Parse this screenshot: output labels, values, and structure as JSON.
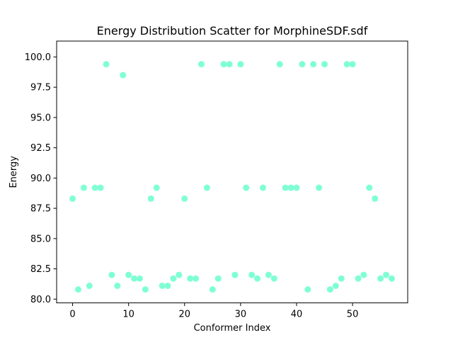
{
  "chart_data": {
    "type": "scatter",
    "title": "Energy Distribution Scatter for MorphineSDF.sdf",
    "xlabel": "Conformer Index",
    "ylabel": "Energy",
    "xlim": [
      -2.85,
      59.85
    ],
    "ylim": [
      79.69,
      101.31
    ],
    "xticks": [
      0,
      10,
      20,
      30,
      40,
      50
    ],
    "yticks": [
      80.0,
      82.5,
      85.0,
      87.5,
      90.0,
      92.5,
      95.0,
      97.5,
      100.0
    ],
    "ytick_labels": [
      "80.0",
      "82.5",
      "85.0",
      "87.5",
      "90.0",
      "92.5",
      "95.0",
      "97.5",
      "100.0"
    ],
    "grid": false,
    "marker_color": "#7fffd4",
    "series": [
      {
        "x": [
          0,
          1,
          2,
          3,
          4,
          5,
          6,
          7,
          8,
          9,
          10,
          11,
          12,
          13,
          14,
          15,
          16,
          17,
          18,
          19,
          20,
          21,
          22,
          23,
          24,
          25,
          26,
          27,
          28,
          29,
          30,
          31,
          32,
          33,
          34,
          35,
          36,
          37,
          38,
          39,
          40,
          41,
          42,
          43,
          44,
          45,
          46,
          47,
          48,
          49,
          50,
          51,
          52,
          53,
          54,
          55,
          56,
          57
        ],
        "y": [
          88.3,
          80.8,
          89.2,
          81.1,
          89.2,
          89.2,
          99.4,
          82.0,
          81.1,
          98.5,
          82.0,
          81.7,
          81.7,
          80.8,
          88.3,
          89.2,
          81.1,
          81.1,
          81.7,
          82.0,
          88.3,
          81.7,
          81.7,
          99.4,
          89.2,
          80.8,
          81.7,
          99.4,
          99.4,
          82.0,
          99.4,
          89.2,
          82.0,
          81.7,
          89.2,
          82.0,
          81.7,
          99.4,
          89.2,
          89.2,
          89.2,
          99.4,
          80.8,
          99.4,
          89.2,
          99.4,
          80.8,
          81.1,
          81.7,
          99.4,
          99.4,
          81.7,
          82.0,
          89.2,
          88.3,
          81.7,
          82.0,
          81.7
        ]
      }
    ]
  }
}
